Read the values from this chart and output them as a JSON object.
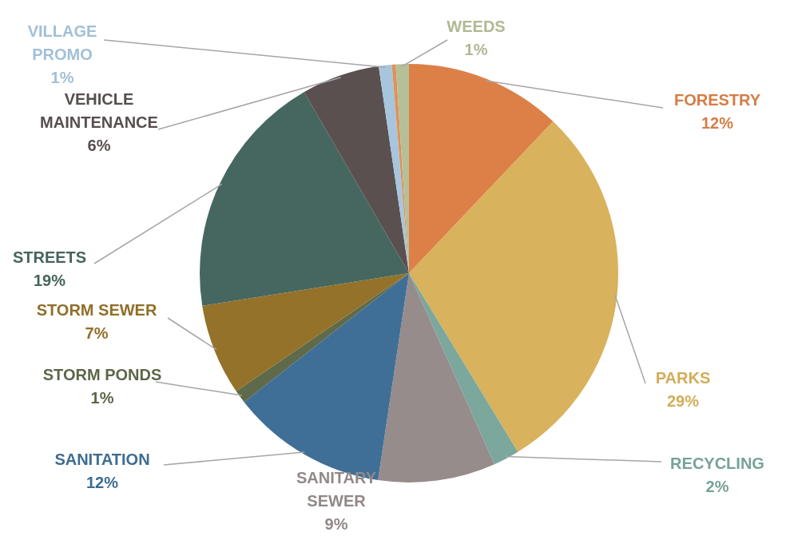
{
  "chart_data": {
    "type": "pie",
    "categories": [
      "FORESTRY",
      "PARKS",
      "RECYCLING",
      "SANITARY SEWER",
      "SANITATION",
      "STORM PONDS",
      "STORM SEWER",
      "STREETS",
      "VEHICLE MAINTENANCE",
      "VILLAGE PROMO",
      null,
      "WEEDS"
    ],
    "values": [
      12,
      29,
      2,
      9,
      12,
      1,
      7,
      19,
      6,
      1,
      0.3,
      1
    ],
    "value_labels": [
      "12%",
      "29%",
      "2%",
      "9%",
      "12%",
      "1%",
      "7%",
      "19%",
      "6%",
      "1%",
      null,
      "1%"
    ],
    "colors": [
      "#dd8047",
      "#d8b25c",
      "#7ba79d",
      "#968c8c",
      "#3f6f96",
      "#5e6a4a",
      "#94722a",
      "#46675f",
      "#5a5050",
      "#a7c6dd",
      "#e0915a",
      "#b5bf98"
    ],
    "legend": false
  }
}
